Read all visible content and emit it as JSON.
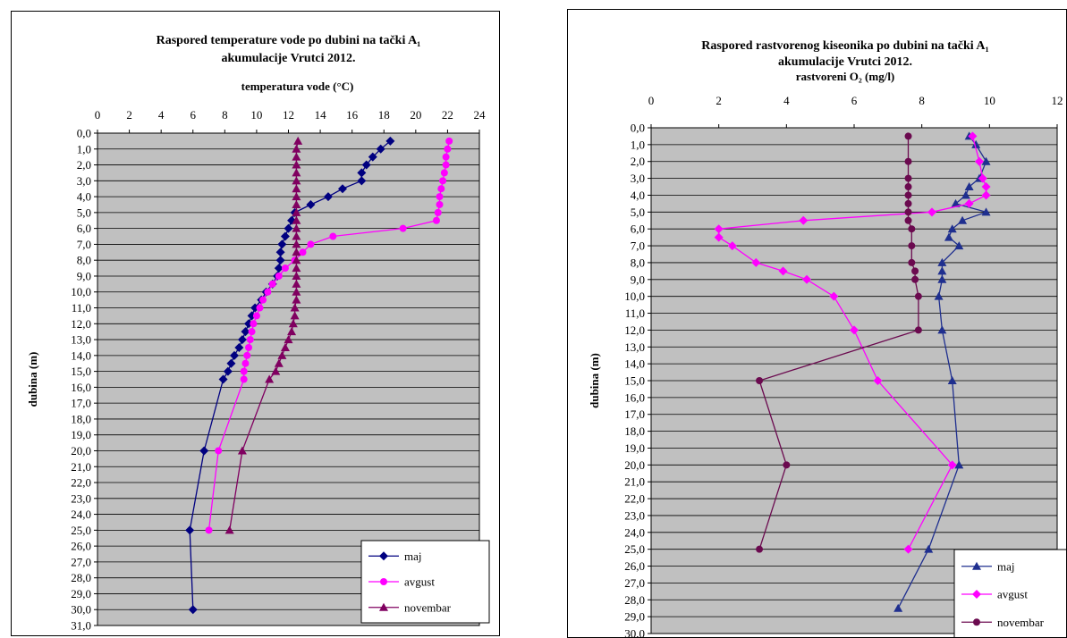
{
  "chart_data": [
    {
      "type": "line",
      "title_lines": [
        "Raspored temperature vode po dubini na tački A₁",
        "akumulacije Vrutci 2012."
      ],
      "xlabel": "temperatura vode (°C)",
      "ylabel": "dubina (m)",
      "x_axis_position": "top",
      "y_axis_inverted": true,
      "xlim": [
        0,
        24
      ],
      "x_ticks": [
        "0",
        "2",
        "4",
        "6",
        "8",
        "10",
        "12",
        "14",
        "16",
        "18",
        "20",
        "22",
        "24"
      ],
      "ylim": [
        0,
        31
      ],
      "y_ticks": [
        "0,0",
        "1,0",
        "2,0",
        "3,0",
        "4,0",
        "5,0",
        "6,0",
        "7,0",
        "8,0",
        "9,0",
        "10,0",
        "11,0",
        "12,0",
        "13,0",
        "14,0",
        "15,0",
        "16,0",
        "17,0",
        "18,0",
        "19,0",
        "20,0",
        "21,0",
        "22,0",
        "23,0",
        "24,0",
        "25,0",
        "26,0",
        "27,0",
        "28,0",
        "29,0",
        "30,0",
        "31,0"
      ],
      "grid": true,
      "legend_position": "bottom-right",
      "series": [
        {
          "name": "maj",
          "color": "#000080",
          "marker": "diamond",
          "points": [
            [
              18.4,
              0.5
            ],
            [
              17.8,
              1
            ],
            [
              17.3,
              1.5
            ],
            [
              16.9,
              2
            ],
            [
              16.6,
              2.5
            ],
            [
              16.6,
              3
            ],
            [
              15.4,
              3.5
            ],
            [
              14.5,
              4
            ],
            [
              13.4,
              4.5
            ],
            [
              12.4,
              5
            ],
            [
              12.2,
              5.5
            ],
            [
              12.0,
              6
            ],
            [
              11.8,
              6.5
            ],
            [
              11.6,
              7
            ],
            [
              11.5,
              7.5
            ],
            [
              11.5,
              8
            ],
            [
              11.4,
              8.5
            ],
            [
              11.3,
              9
            ],
            [
              11.0,
              9.5
            ],
            [
              10.6,
              10
            ],
            [
              10.3,
              10.5
            ],
            [
              9.9,
              11
            ],
            [
              9.7,
              11.5
            ],
            [
              9.5,
              12
            ],
            [
              9.3,
              12.5
            ],
            [
              9.1,
              13
            ],
            [
              8.9,
              13.5
            ],
            [
              8.6,
              14
            ],
            [
              8.4,
              14.5
            ],
            [
              8.2,
              15
            ],
            [
              7.9,
              15.5
            ],
            [
              6.7,
              20
            ],
            [
              5.8,
              25
            ],
            [
              6.0,
              30
            ]
          ]
        },
        {
          "name": "avgust",
          "color": "#ff00ff",
          "marker": "circle",
          "points": [
            [
              22.1,
              0.5
            ],
            [
              22.0,
              1
            ],
            [
              21.9,
              1.5
            ],
            [
              21.9,
              2
            ],
            [
              21.8,
              2.5
            ],
            [
              21.7,
              3
            ],
            [
              21.6,
              3.5
            ],
            [
              21.5,
              4
            ],
            [
              21.5,
              4.5
            ],
            [
              21.4,
              5
            ],
            [
              21.3,
              5.5
            ],
            [
              19.2,
              6
            ],
            [
              14.8,
              6.5
            ],
            [
              13.4,
              7
            ],
            [
              12.9,
              7.5
            ],
            [
              12.4,
              8
            ],
            [
              11.8,
              8.5
            ],
            [
              11.4,
              9
            ],
            [
              11.0,
              9.5
            ],
            [
              10.7,
              10
            ],
            [
              10.4,
              10.5
            ],
            [
              10.2,
              11
            ],
            [
              10.0,
              11.5
            ],
            [
              9.8,
              12
            ],
            [
              9.7,
              12.5
            ],
            [
              9.6,
              13
            ],
            [
              9.5,
              13.5
            ],
            [
              9.4,
              14
            ],
            [
              9.3,
              14.5
            ],
            [
              9.2,
              15
            ],
            [
              9.2,
              15.5
            ],
            [
              7.6,
              20
            ],
            [
              7.0,
              25
            ]
          ]
        },
        {
          "name": "novembar",
          "color": "#800060",
          "marker": "triangle",
          "points": [
            [
              12.6,
              0.5
            ],
            [
              12.5,
              1
            ],
            [
              12.5,
              1.5
            ],
            [
              12.5,
              2
            ],
            [
              12.5,
              2.5
            ],
            [
              12.5,
              3
            ],
            [
              12.5,
              3.5
            ],
            [
              12.5,
              4
            ],
            [
              12.5,
              4.5
            ],
            [
              12.5,
              5
            ],
            [
              12.5,
              5.5
            ],
            [
              12.5,
              6
            ],
            [
              12.5,
              6.5
            ],
            [
              12.5,
              7
            ],
            [
              12.5,
              7.5
            ],
            [
              12.5,
              8
            ],
            [
              12.5,
              8.5
            ],
            [
              12.5,
              9
            ],
            [
              12.5,
              9.5
            ],
            [
              12.5,
              10
            ],
            [
              12.5,
              10.5
            ],
            [
              12.4,
              11
            ],
            [
              12.4,
              11.5
            ],
            [
              12.3,
              12
            ],
            [
              12.2,
              12.5
            ],
            [
              12.0,
              13
            ],
            [
              11.8,
              13.5
            ],
            [
              11.6,
              14
            ],
            [
              11.4,
              14.5
            ],
            [
              11.2,
              15
            ],
            [
              10.8,
              15.5
            ],
            [
              9.1,
              20
            ],
            [
              8.3,
              25
            ]
          ]
        }
      ]
    },
    {
      "type": "line",
      "title_lines": [
        "Raspored rastvorenog kiseonika po dubini na tački A₁",
        "akumulacije Vrutci 2012."
      ],
      "xlabel": "rastvoreni O₂ (mg/l)",
      "ylabel": "dubina (m)",
      "x_axis_position": "top",
      "y_axis_inverted": true,
      "xlim": [
        0,
        12
      ],
      "x_ticks": [
        "0",
        "2",
        "4",
        "6",
        "8",
        "10",
        "12"
      ],
      "ylim": [
        0,
        30
      ],
      "y_ticks": [
        "0,0",
        "1,0",
        "2,0",
        "3,0",
        "4,0",
        "5,0",
        "6,0",
        "7,0",
        "8,0",
        "9,0",
        "10,0",
        "11,0",
        "12,0",
        "13,0",
        "14,0",
        "15,0",
        "16,0",
        "17,0",
        "18,0",
        "19,0",
        "20,0",
        "21,0",
        "22,0",
        "23,0",
        "24,0",
        "25,0",
        "26,0",
        "27,0",
        "28,0",
        "29,0",
        "30,0"
      ],
      "grid": true,
      "legend_position": "bottom-right",
      "series": [
        {
          "name": "maj",
          "color": "#1f2f8f",
          "marker": "triangle",
          "points": [
            [
              9.4,
              0.5
            ],
            [
              9.6,
              1
            ],
            [
              9.9,
              2
            ],
            [
              9.7,
              3
            ],
            [
              9.4,
              3.5
            ],
            [
              9.3,
              4
            ],
            [
              9.0,
              4.5
            ],
            [
              9.9,
              5
            ],
            [
              9.2,
              5.5
            ],
            [
              8.9,
              6
            ],
            [
              8.8,
              6.5
            ],
            [
              9.1,
              7
            ],
            [
              8.6,
              8
            ],
            [
              8.6,
              8.5
            ],
            [
              8.6,
              9
            ],
            [
              8.5,
              10
            ],
            [
              8.6,
              12
            ],
            [
              8.9,
              15
            ],
            [
              9.1,
              20
            ],
            [
              8.2,
              25
            ],
            [
              7.3,
              28.5
            ]
          ]
        },
        {
          "name": "avgust",
          "color": "#ff00ff",
          "marker": "diamond",
          "points": [
            [
              9.5,
              0.5
            ],
            [
              9.7,
              2
            ],
            [
              9.8,
              3
            ],
            [
              9.9,
              3.5
            ],
            [
              9.9,
              4
            ],
            [
              9.4,
              4.5
            ],
            [
              8.3,
              5
            ],
            [
              4.5,
              5.5
            ],
            [
              2.0,
              6
            ],
            [
              2.0,
              6.5
            ],
            [
              2.4,
              7
            ],
            [
              3.1,
              8
            ],
            [
              3.9,
              8.5
            ],
            [
              4.6,
              9
            ],
            [
              5.4,
              10
            ],
            [
              6.0,
              12
            ],
            [
              6.7,
              15
            ],
            [
              8.9,
              20
            ],
            [
              7.6,
              25
            ]
          ]
        },
        {
          "name": "novembar",
          "color": "#6b0a4f",
          "marker": "circle",
          "points": [
            [
              7.6,
              0.5
            ],
            [
              7.6,
              2
            ],
            [
              7.6,
              3
            ],
            [
              7.6,
              3.5
            ],
            [
              7.6,
              4
            ],
            [
              7.6,
              4.5
            ],
            [
              7.6,
              5
            ],
            [
              7.6,
              5.5
            ],
            [
              7.7,
              6
            ],
            [
              7.7,
              7
            ],
            [
              7.7,
              8
            ],
            [
              7.8,
              8.5
            ],
            [
              7.8,
              9
            ],
            [
              7.9,
              10
            ],
            [
              7.9,
              12
            ],
            [
              3.2,
              15
            ],
            [
              4.0,
              20
            ],
            [
              3.2,
              25
            ]
          ]
        }
      ]
    }
  ]
}
